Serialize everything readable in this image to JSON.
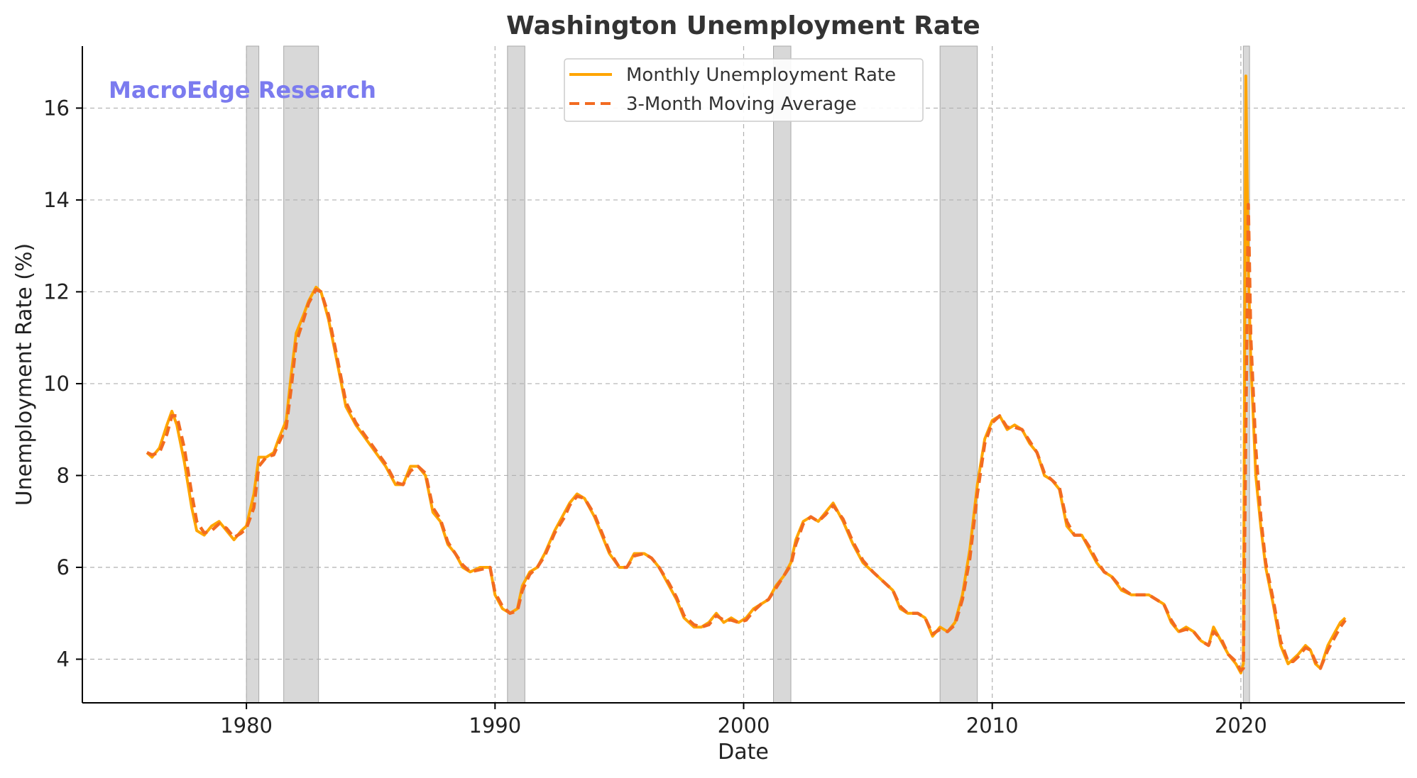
{
  "chart_data": {
    "type": "line",
    "title": "Washington Unemployment Rate",
    "xlabel": "Date",
    "ylabel": "Unemployment Rate (%)",
    "xlim": [
      1973.4,
      2026.6
    ],
    "ylim": [
      3.05,
      17.35
    ],
    "xticks": [
      1980,
      1990,
      2000,
      2010,
      2020
    ],
    "yticks": [
      4,
      6,
      8,
      10,
      12,
      14,
      16
    ],
    "grid": true,
    "legend_position": "upper center",
    "watermark": "MacroEdge Research",
    "colors": {
      "monthly": "#FFA500",
      "moving_average": "#F26B21",
      "recession": "#BEBEBE",
      "watermark": "#7B7BEF"
    },
    "recessions": [
      [
        1980.0,
        1980.5
      ],
      [
        1981.5,
        1982.9
      ],
      [
        1990.5,
        1991.2
      ],
      [
        2001.2,
        2001.9
      ],
      [
        2007.9,
        2009.4
      ],
      [
        2020.1,
        2020.35
      ]
    ],
    "series": [
      {
        "name": "Monthly Unemployment Rate",
        "style": "solid",
        "x": [
          1976.0,
          1976.2,
          1976.5,
          1976.8,
          1977.0,
          1977.2,
          1977.5,
          1977.8,
          1978.0,
          1978.3,
          1978.6,
          1978.9,
          1979.2,
          1979.5,
          1979.8,
          1980.0,
          1980.3,
          1980.5,
          1980.8,
          1981.1,
          1981.3,
          1981.6,
          1981.8,
          1982.0,
          1982.3,
          1982.5,
          1982.8,
          1983.0,
          1983.3,
          1983.6,
          1984.0,
          1984.4,
          1984.8,
          1985.2,
          1985.6,
          1986.0,
          1986.3,
          1986.6,
          1986.9,
          1987.2,
          1987.5,
          1987.8,
          1988.1,
          1988.4,
          1988.7,
          1989.0,
          1989.4,
          1989.8,
          1990.0,
          1990.3,
          1990.6,
          1990.9,
          1991.1,
          1991.4,
          1991.7,
          1992.0,
          1992.4,
          1992.8,
          1993.0,
          1993.3,
          1993.6,
          1994.0,
          1994.3,
          1994.6,
          1995.0,
          1995.3,
          1995.6,
          1996.0,
          1996.3,
          1996.6,
          1997.0,
          1997.3,
          1997.6,
          1998.0,
          1998.3,
          1998.6,
          1998.9,
          1999.2,
          1999.5,
          1999.8,
          2000.1,
          2000.4,
          2000.7,
          2001.0,
          2001.3,
          2001.6,
          2001.9,
          2002.1,
          2002.4,
          2002.7,
          2003.0,
          2003.3,
          2003.6,
          2004.0,
          2004.4,
          2004.8,
          2005.2,
          2005.6,
          2006.0,
          2006.3,
          2006.6,
          2007.0,
          2007.3,
          2007.6,
          2007.9,
          2008.2,
          2008.5,
          2008.8,
          2009.1,
          2009.4,
          2009.7,
          2010.0,
          2010.3,
          2010.6,
          2010.9,
          2011.2,
          2011.5,
          2011.8,
          2012.1,
          2012.4,
          2012.7,
          2013.0,
          2013.3,
          2013.6,
          2013.9,
          2014.2,
          2014.5,
          2014.8,
          2015.2,
          2015.6,
          2016.0,
          2016.3,
          2016.6,
          2016.9,
          2017.2,
          2017.5,
          2017.8,
          2018.1,
          2018.4,
          2018.7,
          2018.9,
          2019.2,
          2019.5,
          2019.8,
          2020.0,
          2020.1,
          2020.2,
          2020.3,
          2020.4,
          2020.6,
          2020.8,
          2021.0,
          2021.3,
          2021.6,
          2021.9,
          2022.1,
          2022.3,
          2022.6,
          2022.8,
          2023.0,
          2023.2,
          2023.5,
          2023.8,
          2024.0,
          2024.2
        ],
        "values": [
          8.5,
          8.4,
          8.6,
          9.1,
          9.4,
          9.1,
          8.3,
          7.3,
          6.8,
          6.7,
          6.9,
          7.0,
          6.8,
          6.6,
          6.8,
          6.9,
          7.6,
          8.4,
          8.4,
          8.5,
          8.8,
          9.2,
          10.2,
          11.1,
          11.5,
          11.8,
          12.1,
          12.0,
          11.4,
          10.6,
          9.5,
          9.1,
          8.8,
          8.5,
          8.2,
          7.8,
          7.8,
          8.2,
          8.2,
          8.0,
          7.2,
          7.0,
          6.5,
          6.3,
          6.0,
          5.9,
          6.0,
          6.0,
          5.4,
          5.1,
          5.0,
          5.1,
          5.6,
          5.9,
          6.0,
          6.3,
          6.8,
          7.2,
          7.4,
          7.6,
          7.5,
          7.1,
          6.7,
          6.3,
          6.0,
          6.0,
          6.3,
          6.3,
          6.2,
          6.0,
          5.6,
          5.3,
          4.9,
          4.7,
          4.7,
          4.8,
          5.0,
          4.8,
          4.9,
          4.8,
          4.9,
          5.1,
          5.2,
          5.3,
          5.6,
          5.8,
          6.1,
          6.6,
          7.0,
          7.1,
          7.0,
          7.2,
          7.4,
          7.0,
          6.5,
          6.1,
          5.9,
          5.7,
          5.5,
          5.1,
          5.0,
          5.0,
          4.9,
          4.5,
          4.7,
          4.6,
          4.8,
          5.4,
          6.4,
          7.8,
          8.8,
          9.2,
          9.3,
          9.0,
          9.1,
          9.0,
          8.7,
          8.5,
          8.0,
          7.9,
          7.7,
          6.9,
          6.7,
          6.7,
          6.4,
          6.1,
          5.9,
          5.8,
          5.5,
          5.4,
          5.4,
          5.4,
          5.3,
          5.2,
          4.8,
          4.6,
          4.7,
          4.6,
          4.4,
          4.3,
          4.7,
          4.4,
          4.1,
          3.9,
          3.7,
          3.9,
          16.7,
          12.5,
          10.5,
          8.0,
          6.9,
          6.0,
          5.2,
          4.3,
          3.9,
          4.0,
          4.1,
          4.3,
          4.2,
          3.9,
          3.8,
          4.3,
          4.6,
          4.8,
          4.9
        ]
      },
      {
        "name": "3-Month Moving Average",
        "style": "dashed",
        "x": [
          1976.0,
          1976.2,
          1976.5,
          1976.8,
          1977.0,
          1977.2,
          1977.5,
          1977.8,
          1978.0,
          1978.3,
          1978.6,
          1978.9,
          1979.2,
          1979.5,
          1979.8,
          1980.0,
          1980.3,
          1980.5,
          1980.8,
          1981.1,
          1981.3,
          1981.6,
          1981.8,
          1982.0,
          1982.3,
          1982.5,
          1982.8,
          1983.0,
          1983.3,
          1983.6,
          1984.0,
          1984.4,
          1984.8,
          1985.2,
          1985.6,
          1986.0,
          1986.3,
          1986.6,
          1986.9,
          1987.2,
          1987.5,
          1987.8,
          1988.1,
          1988.4,
          1988.7,
          1989.0,
          1989.4,
          1989.8,
          1990.0,
          1990.3,
          1990.6,
          1990.9,
          1991.1,
          1991.4,
          1991.7,
          1992.0,
          1992.4,
          1992.8,
          1993.0,
          1993.3,
          1993.6,
          1994.0,
          1994.3,
          1994.6,
          1995.0,
          1995.3,
          1995.6,
          1996.0,
          1996.3,
          1996.6,
          1997.0,
          1997.3,
          1997.6,
          1998.0,
          1998.3,
          1998.6,
          1998.9,
          1999.2,
          1999.5,
          1999.8,
          2000.1,
          2000.4,
          2000.7,
          2001.0,
          2001.3,
          2001.6,
          2001.9,
          2002.1,
          2002.4,
          2002.7,
          2003.0,
          2003.3,
          2003.6,
          2004.0,
          2004.4,
          2004.8,
          2005.2,
          2005.6,
          2006.0,
          2006.3,
          2006.6,
          2007.0,
          2007.3,
          2007.6,
          2007.9,
          2008.2,
          2008.5,
          2008.8,
          2009.1,
          2009.4,
          2009.7,
          2010.0,
          2010.3,
          2010.6,
          2010.9,
          2011.2,
          2011.5,
          2011.8,
          2012.1,
          2012.4,
          2012.7,
          2013.0,
          2013.3,
          2013.6,
          2013.9,
          2014.2,
          2014.5,
          2014.8,
          2015.2,
          2015.6,
          2016.0,
          2016.3,
          2016.6,
          2016.9,
          2017.2,
          2017.5,
          2017.8,
          2018.1,
          2018.4,
          2018.7,
          2018.9,
          2019.2,
          2019.5,
          2019.8,
          2020.0,
          2020.1,
          2020.2,
          2020.3,
          2020.4,
          2020.6,
          2020.8,
          2021.0,
          2021.3,
          2021.6,
          2021.9,
          2022.1,
          2022.3,
          2022.6,
          2022.8,
          2023.0,
          2023.2,
          2023.5,
          2023.8,
          2024.0,
          2024.2
        ],
        "values": [
          8.5,
          8.45,
          8.5,
          8.9,
          9.3,
          9.3,
          8.6,
          7.6,
          7.0,
          6.75,
          6.8,
          6.95,
          6.85,
          6.65,
          6.75,
          6.85,
          7.3,
          8.2,
          8.4,
          8.45,
          8.7,
          9.05,
          9.9,
          10.9,
          11.4,
          11.75,
          12.05,
          12.0,
          11.5,
          10.7,
          9.6,
          9.15,
          8.85,
          8.55,
          8.25,
          7.85,
          7.8,
          8.1,
          8.2,
          8.05,
          7.3,
          7.05,
          6.55,
          6.3,
          6.05,
          5.9,
          5.95,
          6.0,
          5.45,
          5.15,
          5.0,
          5.05,
          5.5,
          5.85,
          6.0,
          6.25,
          6.75,
          7.1,
          7.35,
          7.55,
          7.5,
          7.15,
          6.75,
          6.35,
          6.0,
          6.0,
          6.25,
          6.3,
          6.2,
          6.0,
          5.65,
          5.35,
          4.95,
          4.75,
          4.7,
          4.75,
          4.95,
          4.85,
          4.85,
          4.8,
          4.85,
          5.05,
          5.2,
          5.3,
          5.55,
          5.8,
          6.05,
          6.5,
          6.95,
          7.1,
          7.0,
          7.15,
          7.35,
          7.05,
          6.55,
          6.15,
          5.9,
          5.7,
          5.5,
          5.15,
          5.0,
          5.0,
          4.9,
          4.55,
          4.65,
          4.6,
          4.75,
          5.3,
          6.2,
          7.6,
          8.7,
          9.15,
          9.3,
          9.05,
          9.05,
          9.0,
          8.75,
          8.5,
          8.05,
          7.9,
          7.75,
          7.0,
          6.7,
          6.7,
          6.45,
          6.15,
          5.9,
          5.8,
          5.55,
          5.4,
          5.4,
          5.4,
          5.3,
          5.2,
          4.85,
          4.6,
          4.65,
          4.6,
          4.4,
          4.3,
          4.6,
          4.45,
          4.1,
          3.95,
          3.75,
          3.8,
          9.0,
          13.9,
          11.0,
          8.6,
          7.1,
          6.1,
          5.3,
          4.4,
          3.95,
          3.95,
          4.05,
          4.25,
          4.2,
          3.95,
          3.8,
          4.2,
          4.5,
          4.7,
          4.85
        ]
      }
    ]
  }
}
